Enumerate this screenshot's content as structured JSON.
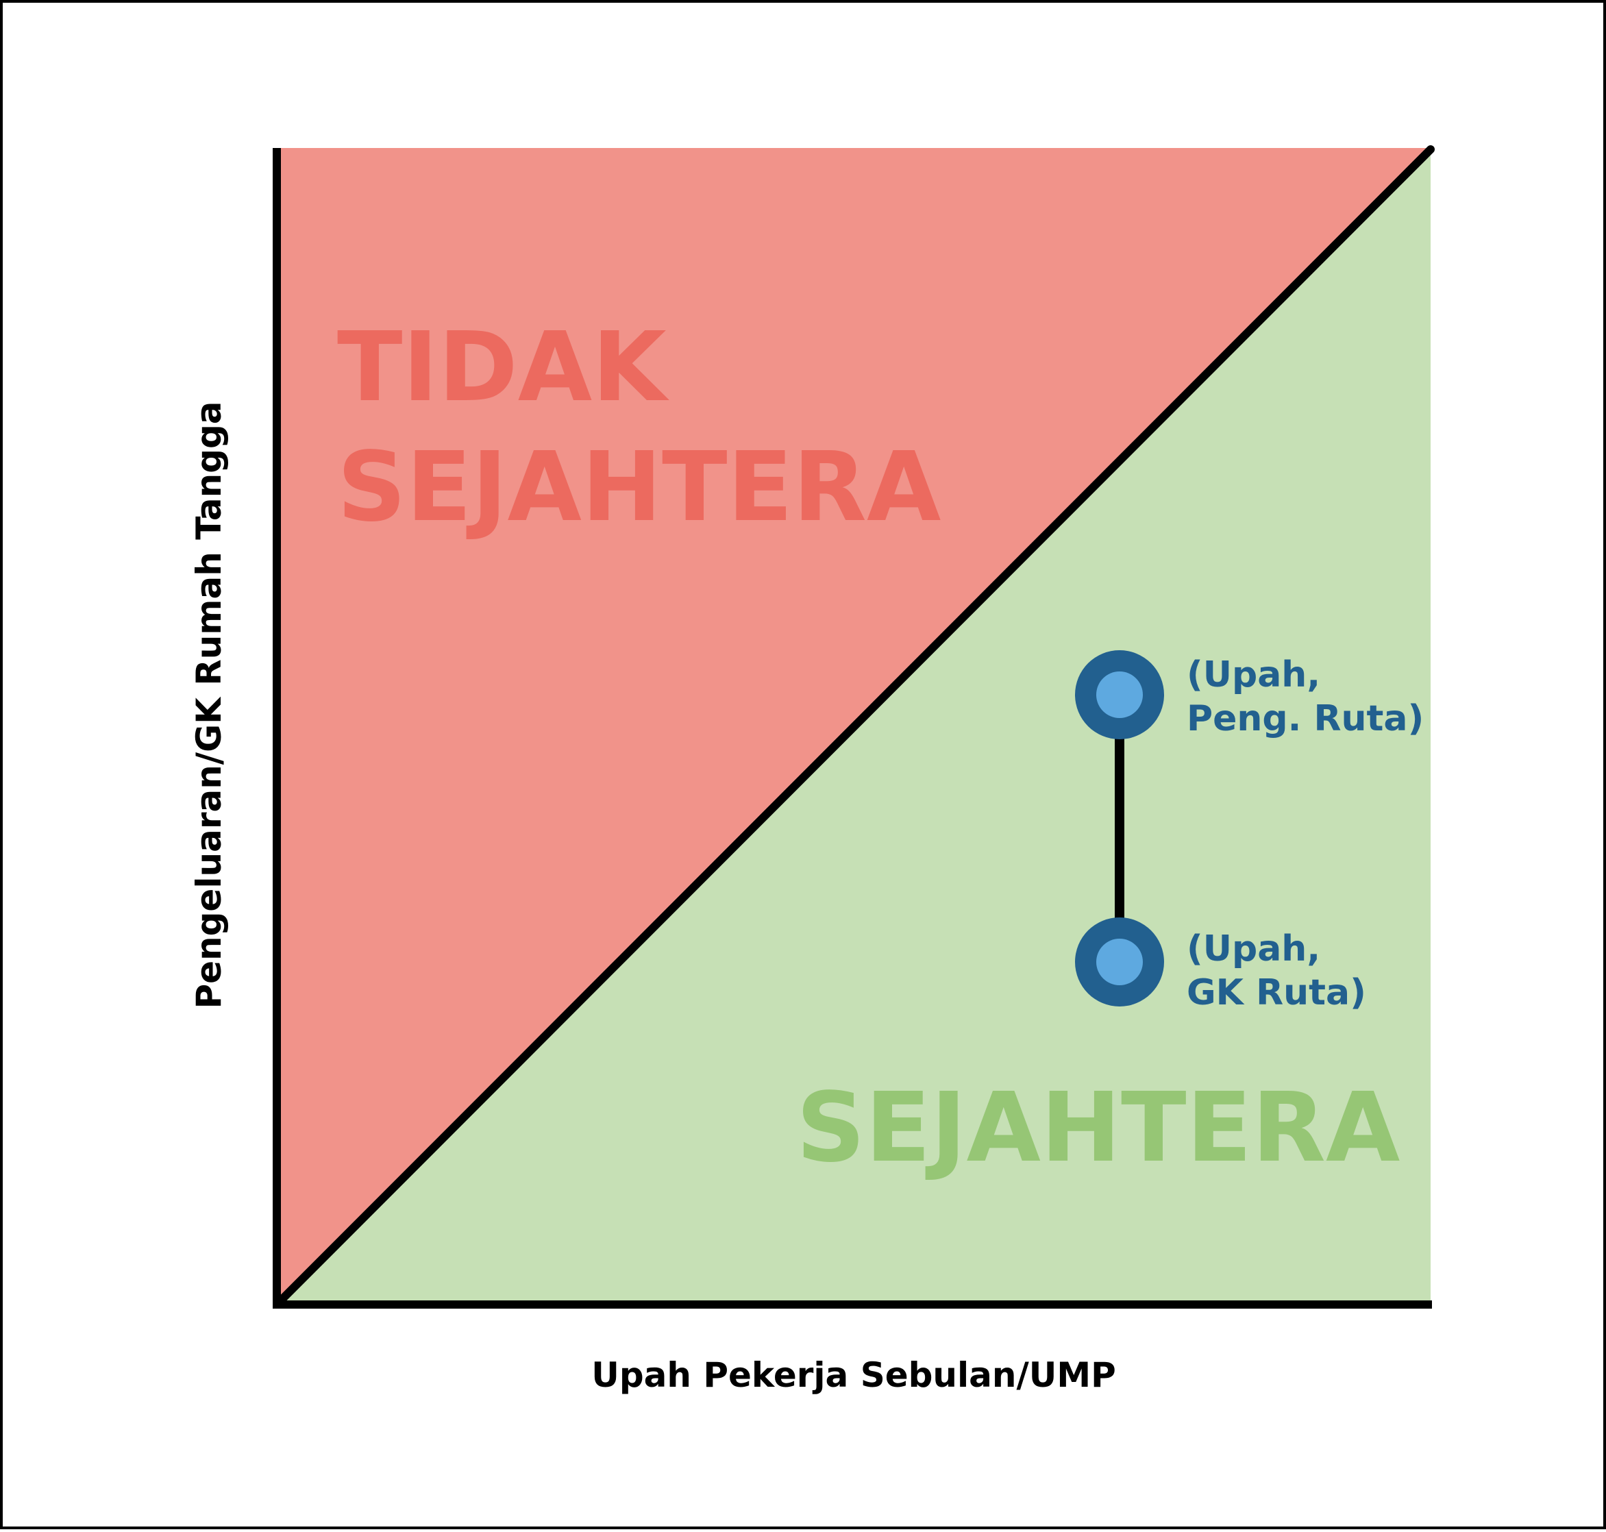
{
  "colors": {
    "unsafe_region": "#f1938a",
    "unsafe_text": "#ec6a5f",
    "safe_region": "#c6e0b5",
    "safe_text": "#96c675",
    "axis": "#000000",
    "point_outer": "#22608f",
    "point_inner": "#5ea9e0",
    "point_text": "#22608f"
  },
  "regions": {
    "upper_label_line1": "TIDAK",
    "upper_label_line2": "SEJAHTERA",
    "lower_label": "SEJAHTERA"
  },
  "axes": {
    "x_label": "Upah Pekerja Sebulan/UMP",
    "y_label": "Pengeluaran/GK  Rumah Tangga"
  },
  "points": {
    "upper": {
      "line1": "(Upah,",
      "line2": "Peng. Ruta)"
    },
    "lower": {
      "line1": "(Upah,",
      "line2": "GK Ruta)"
    }
  }
}
